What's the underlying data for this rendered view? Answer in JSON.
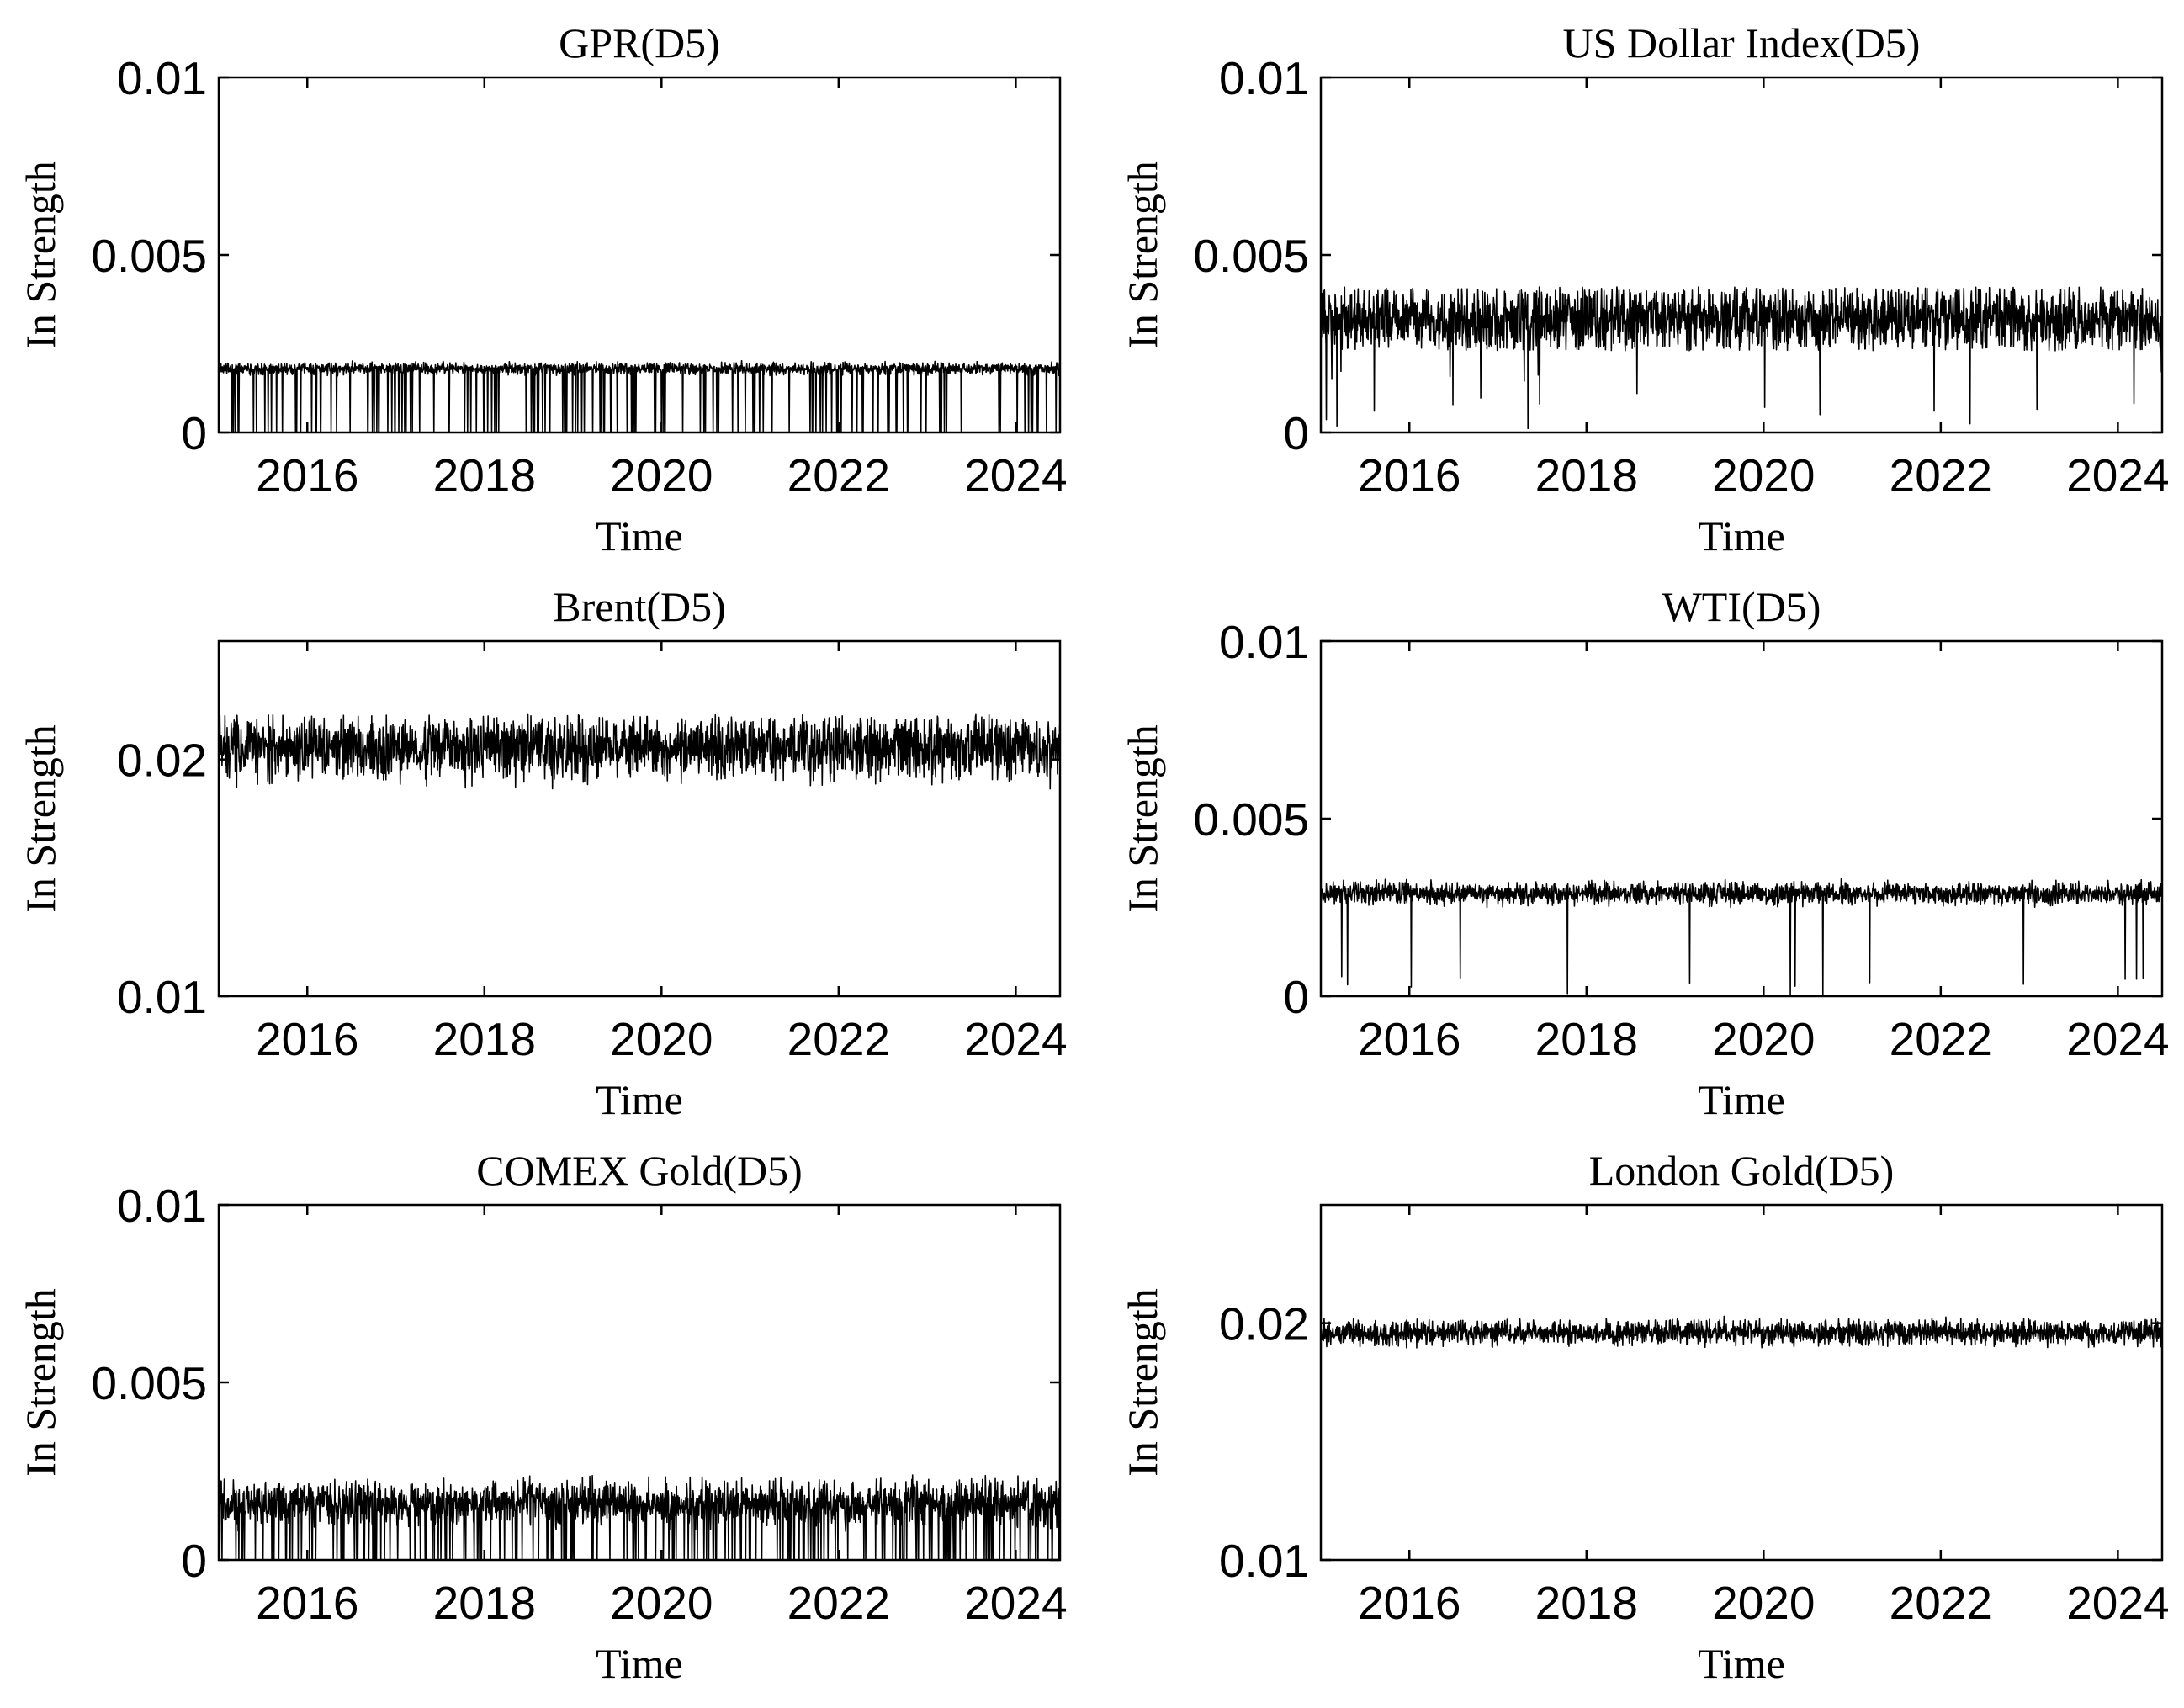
{
  "chart_data": [
    {
      "type": "line",
      "title": "GPR(D5)",
      "xlabel": "Time",
      "ylabel": "In Strength",
      "xlim": [
        2015.0,
        2024.5
      ],
      "ylim": [
        0,
        0.01
      ],
      "xticks": [
        2016,
        2018,
        2020,
        2022,
        2024
      ],
      "xtick_labels": [
        "2016",
        "2018",
        "2020",
        "2022",
        "2024"
      ],
      "yticks": [
        0,
        0.005,
        0.01
      ],
      "ytick_labels": [
        "0",
        "0.005",
        "0.01"
      ],
      "grid": false,
      "series": [
        {
          "base": 0.0018,
          "noise": 8e-05,
          "min": 0.0015,
          "max": 0.0021,
          "drop_rate": 0.07,
          "drop_to": 0.0,
          "drop_to_max": 0.0,
          "seed": 11
        }
      ]
    },
    {
      "type": "line",
      "title": "US Dollar Index(D5)",
      "xlabel": "Time",
      "ylabel": "In Strength",
      "xlim": [
        2015.0,
        2024.5
      ],
      "ylim": [
        0,
        0.01
      ],
      "xticks": [
        2016,
        2018,
        2020,
        2022,
        2024
      ],
      "xtick_labels": [
        "2016",
        "2018",
        "2020",
        "2022",
        "2024"
      ],
      "yticks": [
        0,
        0.005,
        0.01
      ],
      "ytick_labels": [
        "0",
        "0.005",
        "0.01"
      ],
      "grid": false,
      "series": [
        {
          "base": 0.0032,
          "noise": 0.00045,
          "min": 0.0023,
          "max": 0.0041,
          "drop_rate": 0.012,
          "drop_to": 0.0,
          "drop_to_max": 0.0018,
          "seed": 23
        }
      ]
    },
    {
      "type": "line",
      "title": "Brent(D5)",
      "xlabel": "Time",
      "ylabel": "In Strength",
      "xlim": [
        2015.0,
        2024.5
      ],
      "ylim": [
        0.01,
        0.025
      ],
      "xticks": [
        2016,
        2018,
        2020,
        2022,
        2024
      ],
      "xtick_labels": [
        "2016",
        "2018",
        "2020",
        "2022",
        "2024"
      ],
      "yticks": [
        0.01,
        0.02
      ],
      "ytick_labels": [
        "0.01",
        "0.02"
      ],
      "grid": false,
      "series": [
        {
          "base": 0.0205,
          "noise": 0.00065,
          "min": 0.0182,
          "max": 0.0219,
          "drop_rate": 0.0,
          "drop_to": 0.0,
          "drop_to_max": 0.0,
          "seed": 37
        }
      ]
    },
    {
      "type": "line",
      "title": "WTI(D5)",
      "xlabel": "Time",
      "ylabel": "In Strength",
      "xlim": [
        2015.0,
        2024.5
      ],
      "ylim": [
        0,
        0.01
      ],
      "xticks": [
        2016,
        2018,
        2020,
        2022,
        2024
      ],
      "xtick_labels": [
        "2016",
        "2018",
        "2020",
        "2022",
        "2024"
      ],
      "yticks": [
        0,
        0.005,
        0.01
      ],
      "ytick_labels": [
        "0",
        "0.005",
        "0.01"
      ],
      "grid": false,
      "series": [
        {
          "base": 0.0029,
          "noise": 0.00015,
          "min": 0.0025,
          "max": 0.0036,
          "drop_rate": 0.008,
          "drop_to": 0.0,
          "drop_to_max": 0.0006,
          "seed": 41
        }
      ]
    },
    {
      "type": "line",
      "title": "COMEX Gold(D5)",
      "xlabel": "Time",
      "ylabel": "In Strength",
      "xlim": [
        2015.0,
        2024.5
      ],
      "ylim": [
        0,
        0.01
      ],
      "xticks": [
        2016,
        2018,
        2020,
        2022,
        2024
      ],
      "xtick_labels": [
        "2016",
        "2018",
        "2020",
        "2022",
        "2024"
      ],
      "yticks": [
        0,
        0.005,
        0.01
      ],
      "ytick_labels": [
        "0",
        "0.005",
        "0.01"
      ],
      "grid": false,
      "series": [
        {
          "base": 0.0016,
          "noise": 0.0003,
          "min": 0.0008,
          "max": 0.0024,
          "drop_rate": 0.09,
          "drop_to": 0.0,
          "drop_to_max": 0.0,
          "seed": 53
        }
      ]
    },
    {
      "type": "line",
      "title": "London Gold(D5)",
      "xlabel": "Time",
      "ylabel": "In Strength",
      "xlim": [
        2015.0,
        2024.5
      ],
      "ylim": [
        0.01,
        0.025
      ],
      "xticks": [
        2016,
        2018,
        2020,
        2022,
        2024
      ],
      "xtick_labels": [
        "2016",
        "2018",
        "2020",
        "2022",
        "2024"
      ],
      "yticks": [
        0.01,
        0.02
      ],
      "ytick_labels": [
        "0.01",
        "0.02"
      ],
      "grid": false,
      "series": [
        {
          "base": 0.0196,
          "noise": 0.00025,
          "min": 0.0188,
          "max": 0.0206,
          "drop_rate": 0.0,
          "drop_to": 0.0,
          "drop_to_max": 0.0,
          "seed": 67
        }
      ]
    }
  ]
}
